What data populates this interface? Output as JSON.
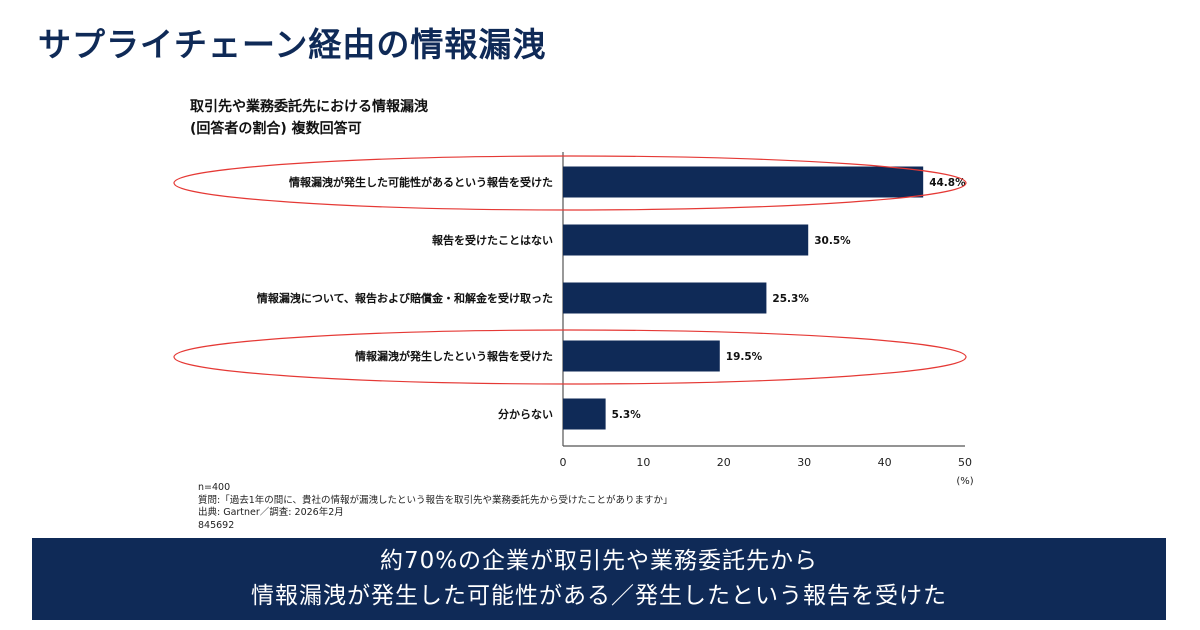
{
  "page": {
    "title": "サプライチェーン経由の情報漏洩"
  },
  "chart_data": {
    "type": "bar",
    "orientation": "horizontal",
    "title": "取引先や業務委託先における情報漏洩",
    "subtitle": "(回答者の割合) 複数回答可",
    "categories": [
      "情報漏洩が発生した可能性があるという報告を受けた",
      "報告を受けたことはない",
      "情報漏洩について、報告および賠償金・和解金を受け取った",
      "情報漏洩が発生したという報告を受けた",
      "分からない"
    ],
    "values": [
      44.8,
      30.5,
      25.3,
      19.5,
      5.3
    ],
    "value_labels": [
      "44.8%",
      "30.5%",
      "25.3%",
      "19.5%",
      "5.3%"
    ],
    "highlighted": [
      true,
      false,
      false,
      true,
      false
    ],
    "xlim": [
      0,
      50
    ],
    "xticks": [
      0,
      10,
      20,
      30,
      40,
      50
    ],
    "xlabel": "(%)",
    "grid": false,
    "bar_color": "#0f2a57",
    "highlight_color": "#e53935"
  },
  "notes": {
    "n": "n=400",
    "question": "質問:「過去1年の間に、貴社の情報が漏洩したという報告を取引先や業務委託先から受けたことがありますか」",
    "source": "出典: Gartner／調査: 2026年2月",
    "id": "845692"
  },
  "banner": {
    "line1": "約70%の企業が取引先や業務委託先から",
    "line2": "情報漏洩が発生した可能性がある／発生したという報告を受けた"
  }
}
